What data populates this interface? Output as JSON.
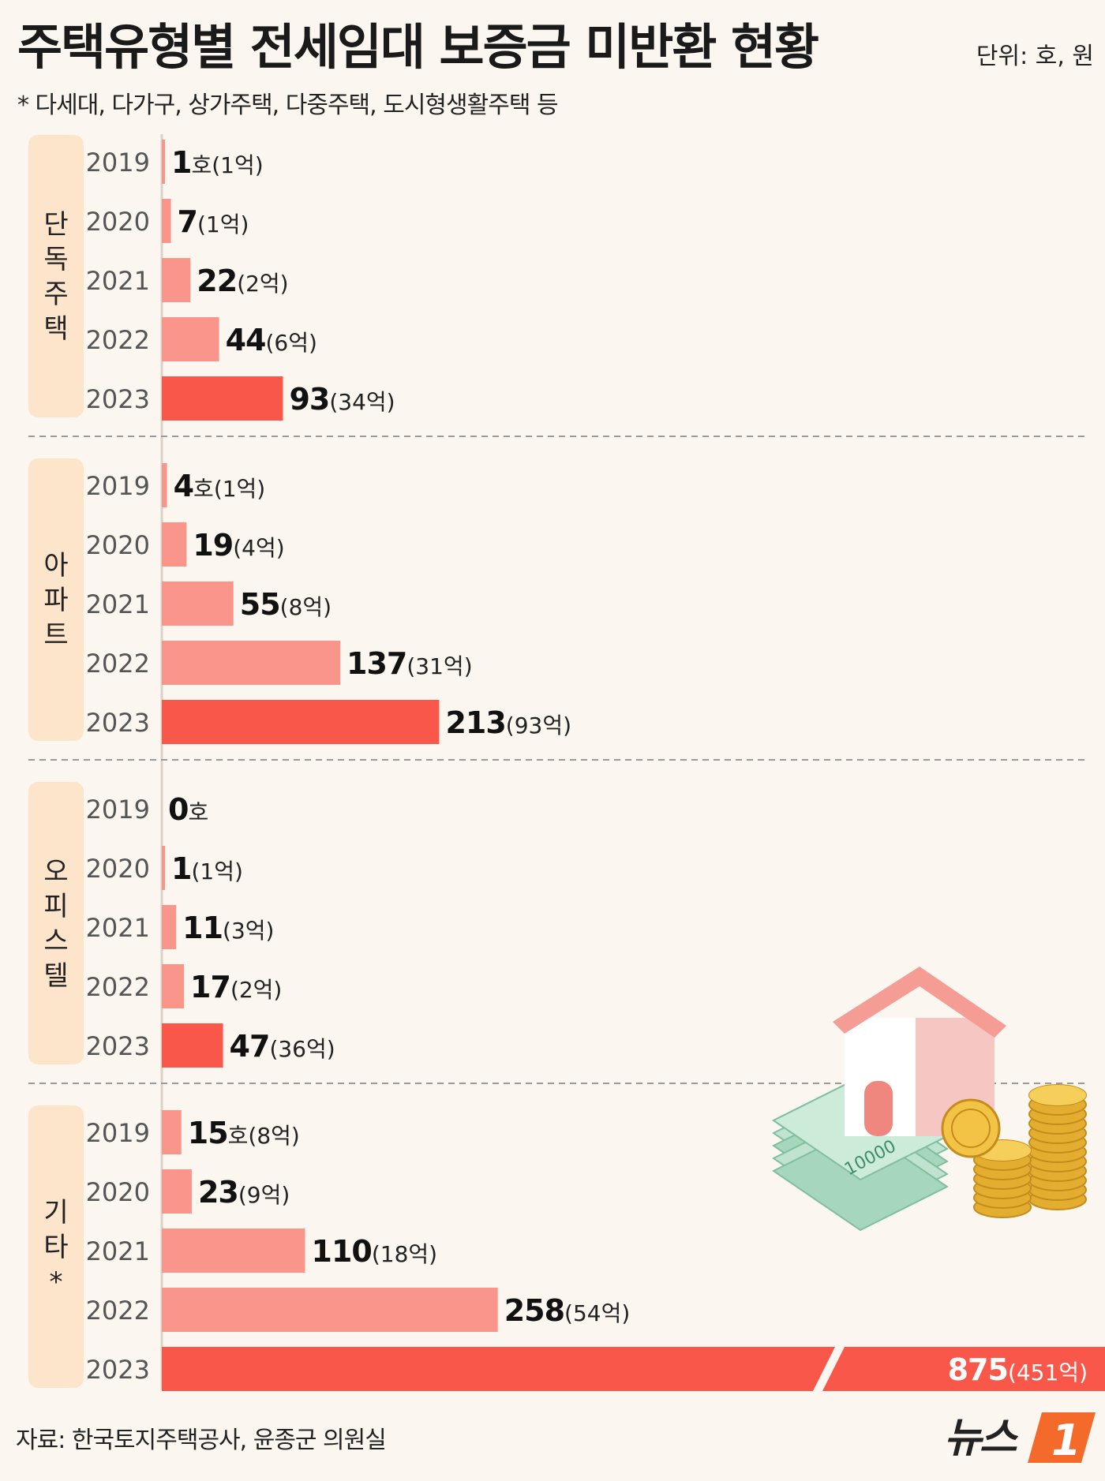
{
  "title": "주택유형별 전세임대 보증금 미반환 현황",
  "unit": "단위: 호, 원",
  "note": "* 다세대, 다가구, 상가주택, 다중주택, 도시형생활주택 등",
  "source": "자료: 한국토지주택공사, 윤종군 의원실",
  "logo_text": "뉴스1",
  "colors": {
    "bar": "#f9958a",
    "bar_latest": "#f9574a",
    "category_bg": "#fde5cc",
    "background": "#fbf7f0"
  },
  "chart_data": {
    "type": "bar",
    "orientation": "horizontal",
    "title": "주택유형별 전세임대 보증금 미반환 현황",
    "units": "호",
    "amount_units": "억",
    "max_visible_value": 500,
    "broken_bar_note": "2023 기타 bar truncated with break mark",
    "groups": [
      {
        "name": "단독주택",
        "rows": [
          {
            "year": "2019",
            "value": 1,
            "label": "1",
            "suffix": "호",
            "amount": "(1억)"
          },
          {
            "year": "2020",
            "value": 7,
            "label": "7",
            "suffix": "",
            "amount": "(1억)"
          },
          {
            "year": "2021",
            "value": 22,
            "label": "22",
            "suffix": "",
            "amount": "(2억)"
          },
          {
            "year": "2022",
            "value": 44,
            "label": "44",
            "suffix": "",
            "amount": "(6억)"
          },
          {
            "year": "2023",
            "value": 93,
            "label": "93",
            "suffix": "",
            "amount": "(34억)"
          }
        ]
      },
      {
        "name": "아파트",
        "rows": [
          {
            "year": "2019",
            "value": 4,
            "label": "4",
            "suffix": "호",
            "amount": "(1억)"
          },
          {
            "year": "2020",
            "value": 19,
            "label": "19",
            "suffix": "",
            "amount": "(4억)"
          },
          {
            "year": "2021",
            "value": 55,
            "label": "55",
            "suffix": "",
            "amount": "(8억)"
          },
          {
            "year": "2022",
            "value": 137,
            "label": "137",
            "suffix": "",
            "amount": "(31억)"
          },
          {
            "year": "2023",
            "value": 213,
            "label": "213",
            "suffix": "",
            "amount": "(93억)"
          }
        ]
      },
      {
        "name": "오피스텔",
        "rows": [
          {
            "year": "2019",
            "value": 0,
            "label": "0",
            "suffix": "호",
            "amount": ""
          },
          {
            "year": "2020",
            "value": 1,
            "label": "1",
            "suffix": "",
            "amount": "(1억)"
          },
          {
            "year": "2021",
            "value": 11,
            "label": "11",
            "suffix": "",
            "amount": "(3억)"
          },
          {
            "year": "2022",
            "value": 17,
            "label": "17",
            "suffix": "",
            "amount": "(2억)"
          },
          {
            "year": "2023",
            "value": 47,
            "label": "47",
            "suffix": "",
            "amount": "(36억)"
          }
        ]
      },
      {
        "name": "기타*",
        "rows": [
          {
            "year": "2019",
            "value": 15,
            "label": "15",
            "suffix": "호",
            "amount": "(8억)"
          },
          {
            "year": "2020",
            "value": 23,
            "label": "23",
            "suffix": "",
            "amount": "(9억)"
          },
          {
            "year": "2021",
            "value": 110,
            "label": "110",
            "suffix": "",
            "amount": "(18억)"
          },
          {
            "year": "2022",
            "value": 258,
            "label": "258",
            "suffix": "",
            "amount": "(54억)"
          },
          {
            "year": "2023",
            "value": 875,
            "label": "875",
            "suffix": "",
            "amount": "(451억)"
          }
        ]
      }
    ]
  }
}
